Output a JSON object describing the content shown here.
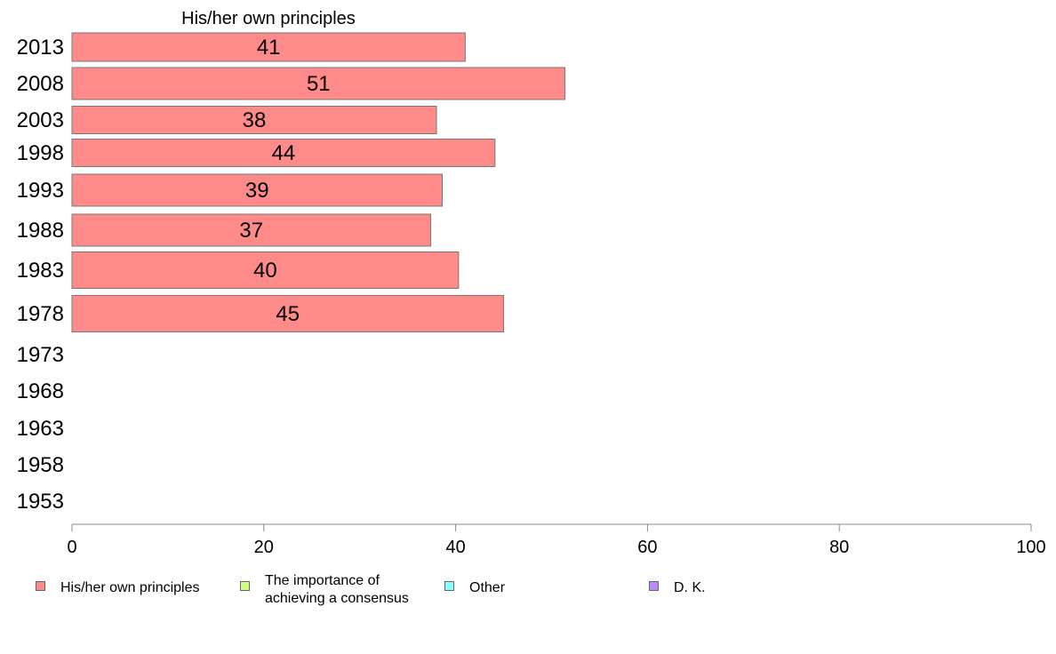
{
  "chart_data": {
    "type": "bar",
    "orientation": "horizontal",
    "title": "His/her own principles",
    "categories": [
      "2013",
      "2008",
      "2003",
      "1998",
      "1993",
      "1988",
      "1983",
      "1978",
      "1973",
      "1968",
      "1963",
      "1958",
      "1953"
    ],
    "series": [
      {
        "name": "His/her own principles",
        "color": "#ff8a8a",
        "values": [
          41,
          51.4,
          38,
          44.1,
          38.6,
          37.4,
          40.3,
          45,
          null,
          null,
          null,
          null,
          null
        ],
        "labels": [
          "41",
          "51",
          "38",
          "44",
          "39",
          "37",
          "40",
          "45",
          "",
          "",
          "",
          "",
          ""
        ]
      }
    ],
    "xlim": [
      0,
      100
    ],
    "xticks": [
      "0",
      "20",
      "40",
      "60",
      "80",
      "100"
    ],
    "grid": false,
    "legend_position": "bottom"
  },
  "legend": [
    {
      "label": "His/her own principles",
      "color": "#ff8a8a"
    },
    {
      "label": "The importance of\nachieving a consensus",
      "color": "#ccff88"
    },
    {
      "label": "Other",
      "color": "#88ffff"
    },
    {
      "label": "D. K.",
      "color": "#bb88ff"
    }
  ]
}
